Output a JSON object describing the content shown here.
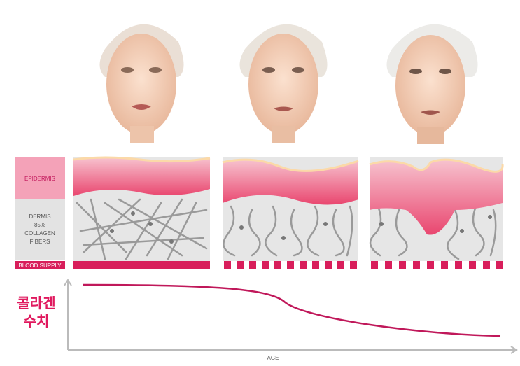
{
  "legend": {
    "epidermis": "EPIDERMIS",
    "dermis": [
      "DERMIS",
      "85%",
      "COLLAGEN",
      "FIBERS"
    ],
    "blood_supply": "BLOOD SUPPLY"
  },
  "graph": {
    "y_label": [
      "콜라겐",
      "수치"
    ],
    "x_label": "AGE"
  }
}
